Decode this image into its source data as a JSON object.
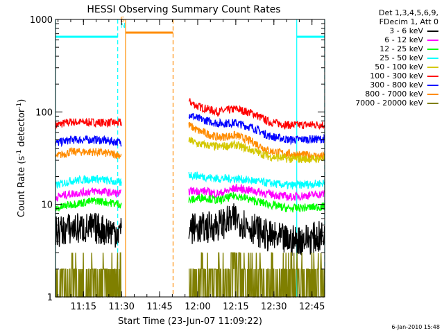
{
  "chart_data": {
    "type": "line",
    "title": "HESSI Observing Summary Count Rates",
    "xlabel": "Start Time (23-Jun-07 11:09:22)",
    "ylabel_main": "Count Rate (s",
    "ylabel_sup1": "-1",
    "ylabel_mid": " detector",
    "ylabel_sup2": "-1",
    "ylabel_end": ")",
    "yscale": "log",
    "ylim": [
      1,
      1000
    ],
    "xlim_min": [
      664,
      770
    ],
    "x_ticks": [
      {
        "min": 675,
        "label": "11:15"
      },
      {
        "min": 690,
        "label": "11:30"
      },
      {
        "min": 705,
        "label": "11:45"
      },
      {
        "min": 720,
        "label": "12:00"
      },
      {
        "min": 735,
        "label": "12:15"
      },
      {
        "min": 750,
        "label": "12:30"
      },
      {
        "min": 765,
        "label": "12:45"
      }
    ],
    "y_ticks": [
      {
        "value": 1,
        "label": "1"
      },
      {
        "value": 10,
        "label": "10"
      },
      {
        "value": 100,
        "label": "100"
      },
      {
        "value": 1000,
        "label": "1000"
      }
    ],
    "legend": {
      "header": [
        "Det 1,3,4,5,6,9,",
        "FDecim 1, Att 0"
      ],
      "entries": [
        {
          "label": "3 - 6 keV",
          "color": "#000000"
        },
        {
          "label": "6 - 12 keV",
          "color": "#ff00ff"
        },
        {
          "label": "12 - 25 keV",
          "color": "#00ff00"
        },
        {
          "label": "25 - 50 keV",
          "color": "#00ffff"
        },
        {
          "label": "50 - 100 keV",
          "color": "#d4c800"
        },
        {
          "label": "100 - 300 keV",
          "color": "#ff0000"
        },
        {
          "label": "300 - 800 keV",
          "color": "#0000ff"
        },
        {
          "label": "800 - 7000 keV",
          "color": "#ff8c00"
        },
        {
          "label": "7000 - 20000 keV",
          "color": "#7f7f00"
        }
      ]
    },
    "segments": [
      [
        664,
        691.6
      ],
      [
        716.5,
        770
      ]
    ],
    "series": [
      {
        "band": "100 - 300 keV",
        "color": "#ff0000",
        "seg1": [
          [
            664,
            72
          ],
          [
            670,
            78
          ],
          [
            680,
            77
          ],
          [
            690,
            76
          ]
        ],
        "seg2": [
          [
            716.5,
            130
          ],
          [
            720,
            115
          ],
          [
            728,
            100
          ],
          [
            735,
            108
          ],
          [
            742,
            96
          ],
          [
            748,
            78
          ],
          [
            756,
            72
          ],
          [
            770,
            73
          ]
        ]
      },
      {
        "band": "300 - 800 keV",
        "color": "#0000ff",
        "seg1": [
          [
            664,
            46
          ],
          [
            670,
            50
          ],
          [
            680,
            50
          ],
          [
            690,
            47
          ]
        ],
        "seg2": [
          [
            716.5,
            95
          ],
          [
            720,
            85
          ],
          [
            728,
            75
          ],
          [
            735,
            76
          ],
          [
            742,
            67
          ],
          [
            748,
            55
          ],
          [
            756,
            50
          ],
          [
            770,
            51
          ]
        ]
      },
      {
        "band": "800 - 7000 keV",
        "color": "#ff8c00",
        "seg1": [
          [
            664,
            33
          ],
          [
            670,
            37
          ],
          [
            680,
            37
          ],
          [
            690,
            34
          ]
        ],
        "seg2": [
          [
            716.5,
            72
          ],
          [
            720,
            63
          ],
          [
            728,
            53
          ],
          [
            735,
            56
          ],
          [
            742,
            47
          ],
          [
            748,
            38
          ],
          [
            756,
            35
          ],
          [
            770,
            33
          ]
        ]
      },
      {
        "band": "50 - 100 keV",
        "color": "#d4c800",
        "seg2": [
          [
            716.5,
            50
          ],
          [
            720,
            45
          ],
          [
            728,
            42
          ],
          [
            735,
            44
          ],
          [
            742,
            38
          ],
          [
            748,
            33
          ],
          [
            756,
            31
          ],
          [
            770,
            31
          ]
        ]
      },
      {
        "band": "25 - 50 keV",
        "color": "#00ffff",
        "seg1": [
          [
            664,
            16
          ],
          [
            670,
            18
          ],
          [
            680,
            19
          ],
          [
            690,
            17
          ]
        ],
        "seg2": [
          [
            716.5,
            21
          ],
          [
            722,
            20
          ],
          [
            728,
            19
          ],
          [
            735,
            19
          ],
          [
            742,
            18
          ],
          [
            748,
            17
          ],
          [
            756,
            16
          ],
          [
            770,
            17
          ]
        ]
      },
      {
        "band": "6 - 12 keV",
        "color": "#ff00ff",
        "seg1": [
          [
            664,
            12
          ],
          [
            670,
            13
          ],
          [
            680,
            14
          ],
          [
            690,
            13
          ]
        ],
        "seg2": [
          [
            716.5,
            14
          ],
          [
            722,
            14
          ],
          [
            728,
            13
          ],
          [
            735,
            15
          ],
          [
            742,
            14
          ],
          [
            748,
            13
          ],
          [
            756,
            12
          ],
          [
            770,
            13
          ]
        ]
      },
      {
        "band": "12 - 25 keV",
        "color": "#00ff00",
        "seg1": [
          [
            664,
            9
          ],
          [
            670,
            10
          ],
          [
            680,
            11
          ],
          [
            690,
            10
          ]
        ],
        "seg2": [
          [
            716.5,
            11
          ],
          [
            722,
            12
          ],
          [
            728,
            11
          ],
          [
            735,
            12.5
          ],
          [
            742,
            11
          ],
          [
            748,
            10
          ],
          [
            756,
            9
          ],
          [
            770,
            9.5
          ]
        ]
      },
      {
        "band": "3 - 6 keV",
        "color": "#000000",
        "seg1": [
          [
            664,
            5
          ],
          [
            670,
            5.5
          ],
          [
            680,
            5.5
          ],
          [
            690,
            5
          ]
        ],
        "seg2": [
          [
            716.5,
            5.5
          ],
          [
            722,
            5.5
          ],
          [
            728,
            6
          ],
          [
            735,
            7
          ],
          [
            742,
            5.5
          ],
          [
            748,
            4.5
          ],
          [
            756,
            4
          ],
          [
            770,
            4.5
          ]
        ]
      },
      {
        "band": "7000 - 20000 keV",
        "color": "#7f7f00",
        "seg1": [
          [
            664,
            1.6
          ],
          [
            670,
            1.6
          ],
          [
            680,
            1.6
          ],
          [
            690,
            1.6
          ]
        ],
        "seg2": [
          [
            716.5,
            1.6
          ],
          [
            725,
            1.6
          ],
          [
            735,
            2
          ],
          [
            742,
            1.6
          ],
          [
            750,
            1.5
          ],
          [
            770,
            1.6
          ]
        ]
      }
    ],
    "state_lines": [
      {
        "type": "attenuator",
        "color": "#00ffff",
        "level": 650,
        "spans": [
          [
            664,
            688.5
          ],
          [
            759,
            770
          ]
        ]
      },
      {
        "type": "saa",
        "color": "#ff8c00",
        "level": 720,
        "spans": [
          [
            691.6,
            710.3
          ]
        ]
      }
    ],
    "vlines_solid": [
      {
        "min": 664,
        "color": "#00ffff"
      },
      {
        "min": 691.6,
        "color": "#ff8c00"
      },
      {
        "min": 759,
        "color": "#00ffff"
      }
    ],
    "vlines_dashed": [
      {
        "min": 688.5,
        "color": "#00ffff"
      },
      {
        "min": 710.3,
        "color": "#ff8c00"
      },
      {
        "min": 770,
        "color": "#00ffff"
      }
    ],
    "markers": [
      {
        "text": "S",
        "color": "#ff8c00",
        "min": 690.4,
        "value": 950
      },
      {
        "text": "N",
        "color": "#00ffff",
        "min": 690.6,
        "value": 810
      }
    ]
  },
  "stamp": "6-Jan-2010 15:48"
}
